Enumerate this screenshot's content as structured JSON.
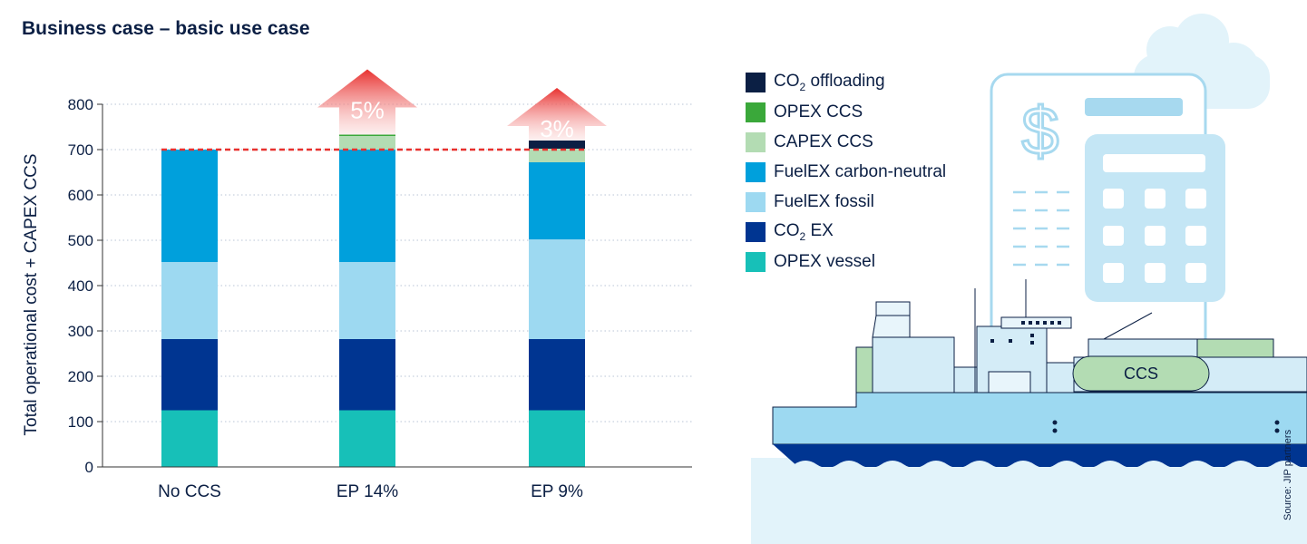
{
  "title": "Business case – basic use case",
  "chart_data": {
    "type": "bar",
    "stacked": true,
    "ylabel": "Total operational cost + CAPEX CCS",
    "xlabel": "",
    "ylim": [
      0,
      800
    ],
    "yticks": [
      0,
      100,
      200,
      300,
      400,
      500,
      600,
      700,
      800
    ],
    "categories": [
      "No CCS",
      "EP 14%",
      "EP 9%"
    ],
    "series": [
      {
        "name": "OPEX vessel",
        "color": "#17c0b8",
        "values": [
          125,
          125,
          125
        ]
      },
      {
        "name": "CO2 EX",
        "color": "#003591",
        "values": [
          157,
          157,
          157
        ]
      },
      {
        "name": "FuelEX fossil",
        "color": "#9dd9f1",
        "values": [
          170,
          170,
          220
        ]
      },
      {
        "name": "FuelEX carbon-neutral",
        "color": "#00a0dc",
        "values": [
          248,
          248,
          170
        ]
      },
      {
        "name": "CAPEX CCS",
        "color": "#b3dcb3",
        "values": [
          0,
          30,
          30
        ]
      },
      {
        "name": "OPEX CCS",
        "color": "#3aa83a",
        "values": [
          0,
          3,
          0
        ]
      },
      {
        "name": "CO2 offloading",
        "color": "#0b1f44",
        "values": [
          0,
          0,
          18
        ]
      }
    ],
    "reference_line": {
      "value": 700,
      "color": "#e8302e",
      "style": "dashed"
    },
    "annotations": [
      {
        "category": "EP 14%",
        "text": "5%"
      },
      {
        "category": "EP 9%",
        "text": "3%"
      }
    ],
    "legend": [
      {
        "prefix": "CO",
        "sub": "2",
        "suffix": " offloading",
        "color": "#0b1f44"
      },
      {
        "prefix": "OPEX CCS",
        "sub": "",
        "suffix": "",
        "color": "#3aa83a"
      },
      {
        "prefix": "CAPEX CCS",
        "sub": "",
        "suffix": "",
        "color": "#b3dcb3"
      },
      {
        "prefix": "FuelEX carbon-neutral",
        "sub": "",
        "suffix": "",
        "color": "#00a0dc"
      },
      {
        "prefix": "FuelEX fossil",
        "sub": "",
        "suffix": "",
        "color": "#9dd9f1"
      },
      {
        "prefix": "CO",
        "sub": "2",
        "suffix": " EX",
        "color": "#003591"
      },
      {
        "prefix": "OPEX vessel",
        "sub": "",
        "suffix": "",
        "color": "#17c0b8"
      }
    ],
    "legend_position": "top-right"
  },
  "illustration": {
    "tank_label": "CCS",
    "symbol": "$"
  },
  "source": "Source: JIP partners"
}
